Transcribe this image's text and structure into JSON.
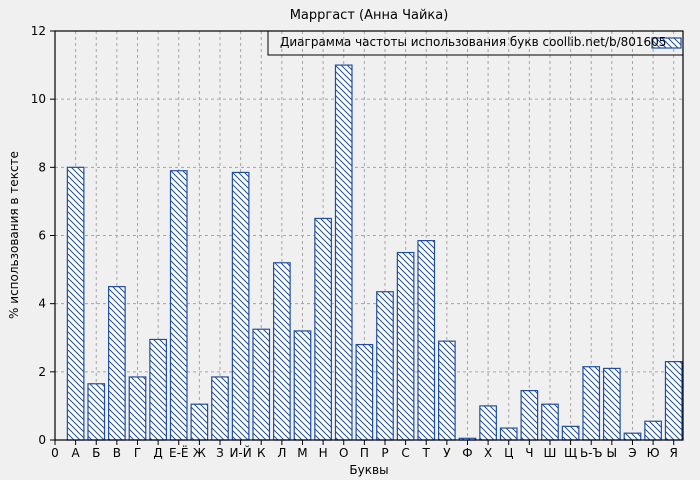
{
  "chart_data": {
    "type": "bar",
    "title": "Марргаст (Анна Чайка)",
    "legend": "Диаграмма частоты использования букв coollib.net/b/801605",
    "legend_position": "top-right",
    "xlabel": "Буквы",
    "ylabel": "% использования в тексте",
    "origin_label": "0",
    "ylim": [
      0,
      12
    ],
    "yticks": [
      0,
      2,
      4,
      6,
      8,
      10,
      12
    ],
    "grid": true,
    "categories": [
      "А",
      "Б",
      "В",
      "Г",
      "Д",
      "Е-Ё",
      "Ж",
      "З",
      "И-Й",
      "К",
      "Л",
      "М",
      "Н",
      "О",
      "П",
      "Р",
      "С",
      "Т",
      "У",
      "Ф",
      "Х",
      "Ц",
      "Ч",
      "Ш",
      "Щ",
      "Ь-Ъ",
      "Ы",
      "Э",
      "Ю",
      "Я"
    ],
    "values": [
      8.0,
      1.65,
      4.5,
      1.85,
      2.95,
      7.9,
      1.05,
      1.85,
      7.85,
      3.25,
      5.2,
      3.2,
      6.5,
      11.0,
      2.8,
      4.35,
      5.5,
      5.85,
      2.9,
      0.05,
      1.0,
      0.35,
      1.45,
      1.05,
      0.4,
      2.15,
      2.1,
      0.2,
      0.55,
      2.3
    ],
    "colors": {
      "background": "#f0f0f0",
      "bar_fill": "#ffffff",
      "bar_border": "#1f4e9e",
      "hatch": "#1f4e9e",
      "grid": "#a5a5a5",
      "axis": "#000000",
      "text": "#000000"
    }
  }
}
